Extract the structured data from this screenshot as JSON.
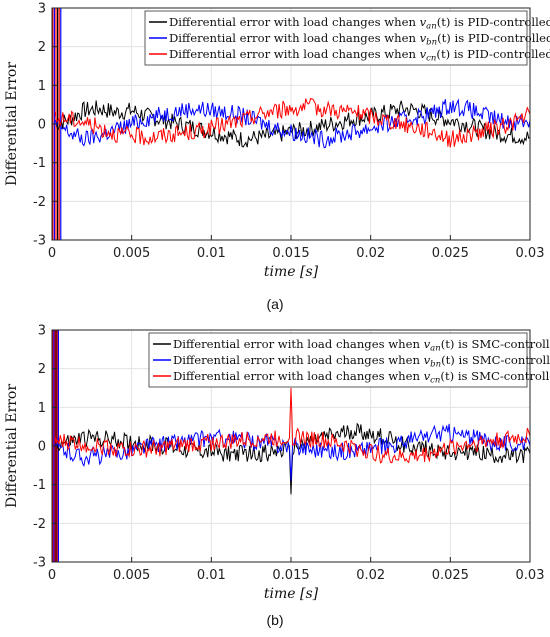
{
  "chart_data": [
    {
      "type": "line",
      "panel_label": "(a)",
      "xlabel": "time [s]",
      "ylabel": "Differential Error",
      "xlim": [
        0,
        0.03
      ],
      "ylim": [
        -3,
        3
      ],
      "xticks": [
        "0",
        "0.005",
        "0.01",
        "0.015",
        "0.02",
        "0.025",
        "0.03"
      ],
      "yticks": [
        "3",
        "2",
        "1",
        "0",
        "-1",
        "-2",
        "-3"
      ],
      "grid": true,
      "legend_position": "top-right",
      "series": [
        {
          "name": "Differential error with load changes when van(t) is PID-controlled",
          "legend_prefix": "Differential error with load changes when ",
          "legend_var": "v",
          "legend_sub": "an",
          "legend_suffix": "(t) is PID-controlled",
          "color": "#000000",
          "x": [
            0.0002,
            0.001,
            0.002,
            0.003,
            0.004,
            0.005,
            0.006,
            0.007,
            0.008,
            0.009,
            0.01,
            0.011,
            0.012,
            0.013,
            0.014,
            0.015,
            0.016,
            0.017,
            0.018,
            0.019,
            0.02,
            0.021,
            0.022,
            0.023,
            0.024,
            0.025,
            0.026,
            0.027,
            0.028,
            0.029,
            0.03
          ],
          "y": [
            0.0,
            0.1,
            0.35,
            0.4,
            0.3,
            0.35,
            0.2,
            0.1,
            0.0,
            -0.1,
            -0.2,
            -0.3,
            -0.4,
            -0.35,
            -0.3,
            -0.2,
            -0.15,
            -0.05,
            0.05,
            0.15,
            0.2,
            0.3,
            0.4,
            0.35,
            0.2,
            0.1,
            0.0,
            -0.15,
            -0.25,
            -0.3,
            -0.35
          ]
        },
        {
          "name": "Differential error with load changes when vbn(t) is PID-controlled",
          "legend_prefix": "Differential error with load changes when ",
          "legend_var": "v",
          "legend_sub": "bn",
          "legend_suffix": "(t) is PID-controlled",
          "color": "#0000ff",
          "x": [
            0.0002,
            0.001,
            0.002,
            0.003,
            0.004,
            0.005,
            0.006,
            0.007,
            0.008,
            0.009,
            0.01,
            0.011,
            0.012,
            0.013,
            0.014,
            0.015,
            0.016,
            0.017,
            0.018,
            0.019,
            0.02,
            0.021,
            0.022,
            0.023,
            0.024,
            0.025,
            0.026,
            0.027,
            0.028,
            0.029,
            0.03
          ],
          "y": [
            0.0,
            -0.2,
            -0.4,
            -0.3,
            -0.15,
            0.0,
            0.15,
            0.25,
            0.35,
            0.4,
            0.35,
            0.3,
            0.2,
            0.05,
            -0.1,
            -0.2,
            -0.3,
            -0.4,
            -0.3,
            -0.2,
            -0.1,
            0.0,
            0.1,
            0.2,
            0.3,
            0.5,
            0.4,
            0.25,
            0.1,
            0.05,
            0.1
          ]
        },
        {
          "name": "Differential error with load changes when vcn(t) is PID-controlled",
          "legend_prefix": "Differential error with load changes when ",
          "legend_var": "v",
          "legend_sub": "cn",
          "legend_suffix": "(t) is PID-controlled",
          "color": "#ff0000",
          "x": [
            0.0002,
            0.001,
            0.002,
            0.003,
            0.004,
            0.005,
            0.006,
            0.007,
            0.008,
            0.009,
            0.01,
            0.011,
            0.012,
            0.013,
            0.014,
            0.015,
            0.016,
            0.017,
            0.018,
            0.019,
            0.02,
            0.021,
            0.022,
            0.023,
            0.024,
            0.025,
            0.026,
            0.027,
            0.028,
            0.029,
            0.03
          ],
          "y": [
            0.1,
            0.15,
            0.05,
            -0.1,
            -0.25,
            -0.3,
            -0.35,
            -0.3,
            -0.25,
            -0.2,
            -0.1,
            0.0,
            0.1,
            0.25,
            0.35,
            0.4,
            0.45,
            0.4,
            0.35,
            0.3,
            0.2,
            0.1,
            0.0,
            -0.1,
            -0.2,
            -0.4,
            -0.3,
            -0.2,
            -0.1,
            0.05,
            0.25
          ]
        }
      ]
    },
    {
      "type": "line",
      "panel_label": "(b)",
      "xlabel": "time [s]",
      "ylabel": "Differential Error",
      "xlim": [
        0,
        0.03
      ],
      "ylim": [
        -3,
        3
      ],
      "xticks": [
        "0",
        "0.005",
        "0.01",
        "0.015",
        "0.02",
        "0.025",
        "0.03"
      ],
      "yticks": [
        "3",
        "2",
        "1",
        "0",
        "-1",
        "-2",
        "-3"
      ],
      "grid": true,
      "legend_position": "top-right",
      "series": [
        {
          "name": "Differential error with load changes when van(t) is SMC-controlled",
          "legend_prefix": "Differential error with load changes when ",
          "legend_var": "v",
          "legend_sub": "an",
          "legend_suffix": "(t) is SMC-controlled",
          "color": "#000000",
          "x": [
            0.0002,
            0.001,
            0.002,
            0.003,
            0.004,
            0.005,
            0.006,
            0.007,
            0.008,
            0.009,
            0.01,
            0.011,
            0.012,
            0.013,
            0.014,
            0.0149,
            0.015,
            0.0151,
            0.016,
            0.017,
            0.018,
            0.019,
            0.02,
            0.021,
            0.022,
            0.023,
            0.024,
            0.025,
            0.026,
            0.027,
            0.028,
            0.029,
            0.03
          ],
          "y": [
            0.05,
            0.1,
            0.2,
            0.2,
            0.15,
            0.1,
            0.05,
            0.0,
            -0.05,
            -0.1,
            -0.15,
            -0.2,
            -0.2,
            -0.2,
            -0.15,
            -0.1,
            -1.25,
            -0.05,
            0.1,
            0.2,
            0.3,
            0.4,
            0.3,
            0.2,
            0.05,
            -0.05,
            -0.1,
            -0.15,
            -0.15,
            -0.2,
            -0.25,
            -0.3,
            -0.2
          ]
        },
        {
          "name": "Differential error with load changes when vbn(t) is SMC-controlled",
          "legend_prefix": "Differential error with load changes when ",
          "legend_var": "v",
          "legend_sub": "bn",
          "legend_suffix": "(t) is SMC-controlled",
          "color": "#0000ff",
          "x": [
            0.0002,
            0.001,
            0.002,
            0.003,
            0.004,
            0.005,
            0.006,
            0.007,
            0.008,
            0.009,
            0.01,
            0.011,
            0.012,
            0.013,
            0.014,
            0.0149,
            0.015,
            0.0151,
            0.016,
            0.017,
            0.018,
            0.019,
            0.02,
            0.021,
            0.022,
            0.023,
            0.024,
            0.025,
            0.026,
            0.027,
            0.028,
            0.029,
            0.03
          ],
          "y": [
            0.0,
            -0.15,
            -0.3,
            -0.25,
            -0.2,
            -0.1,
            0.0,
            0.05,
            0.1,
            0.15,
            0.2,
            0.2,
            0.15,
            0.1,
            0.05,
            0.0,
            -0.9,
            0.0,
            -0.05,
            -0.1,
            -0.15,
            -0.1,
            -0.05,
            0.0,
            0.1,
            0.2,
            0.3,
            0.35,
            0.25,
            0.15,
            0.1,
            0.05,
            0.0
          ]
        },
        {
          "name": "Differential error with load changes when vcn(t) is SMC-controlled",
          "legend_prefix": "Differential error with load changes when ",
          "legend_var": "v",
          "legend_sub": "cn",
          "legend_suffix": "(t) is SMC-controlled",
          "color": "#ff0000",
          "x": [
            0.0002,
            0.001,
            0.002,
            0.003,
            0.004,
            0.005,
            0.006,
            0.007,
            0.008,
            0.009,
            0.01,
            0.011,
            0.012,
            0.013,
            0.014,
            0.0149,
            0.015,
            0.0151,
            0.016,
            0.017,
            0.018,
            0.019,
            0.02,
            0.021,
            0.022,
            0.023,
            0.024,
            0.025,
            0.026,
            0.027,
            0.028,
            0.029,
            0.03
          ],
          "y": [
            0.1,
            0.1,
            0.05,
            0.0,
            -0.05,
            -0.1,
            -0.1,
            -0.05,
            0.0,
            0.05,
            0.1,
            0.1,
            0.15,
            0.2,
            0.2,
            0.2,
            1.5,
            0.25,
            0.2,
            0.15,
            0.05,
            -0.05,
            -0.15,
            -0.25,
            -0.3,
            -0.25,
            -0.15,
            -0.05,
            0.05,
            0.1,
            0.15,
            0.2,
            0.25
          ]
        }
      ]
    }
  ]
}
